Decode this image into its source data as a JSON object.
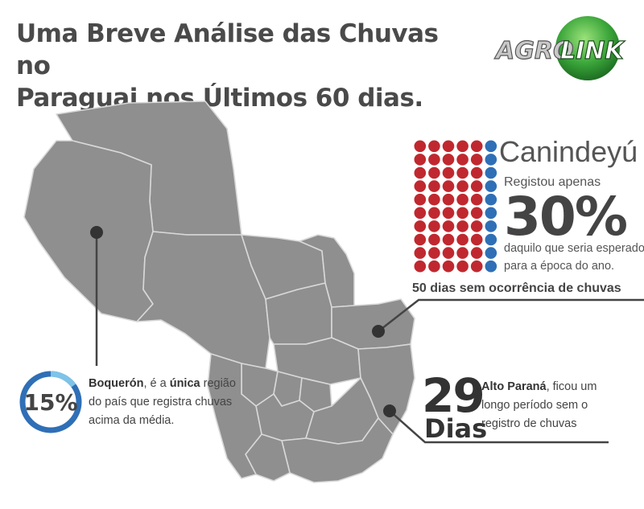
{
  "header": {
    "title_line1": "Uma Breve Análise das Chuvas no",
    "title_line2": "Paraguai nos Últimos 60 dias."
  },
  "logo": {
    "part1": "AGRO",
    "part2": "LINK"
  },
  "canindeyu": {
    "name": "Canindeyú",
    "subtitle": "Registou apenas",
    "percent": "30%",
    "desc_line1": "daquilo que seria esperado",
    "desc_line2": "para a época do ano.",
    "no_rain": "50 dias sem ocorrência de chuvas",
    "dot_grid": {
      "rows": 10,
      "cols": 6,
      "blue_cols": 1
    }
  },
  "boqueron": {
    "percent": "15%",
    "percent_value": 0.15,
    "name": "Boquerón",
    "text1": ", é a ",
    "emph": "única",
    "text2": " região do país que registra chuvas acima da média."
  },
  "alto_parana": {
    "days_num": "29",
    "days_unit": "Dias",
    "name": "Alto Paraná",
    "text": ", ficou um longo período sem o registro de chuvas"
  },
  "colors": {
    "map_fill": "#8f8f8f",
    "map_border": "#d8d8d8",
    "dot_red": "#c0282f",
    "dot_blue": "#2f6fb6",
    "ring_blue": "#2f6fb6",
    "ring_light": "#7ec3e8",
    "line": "#444444"
  }
}
